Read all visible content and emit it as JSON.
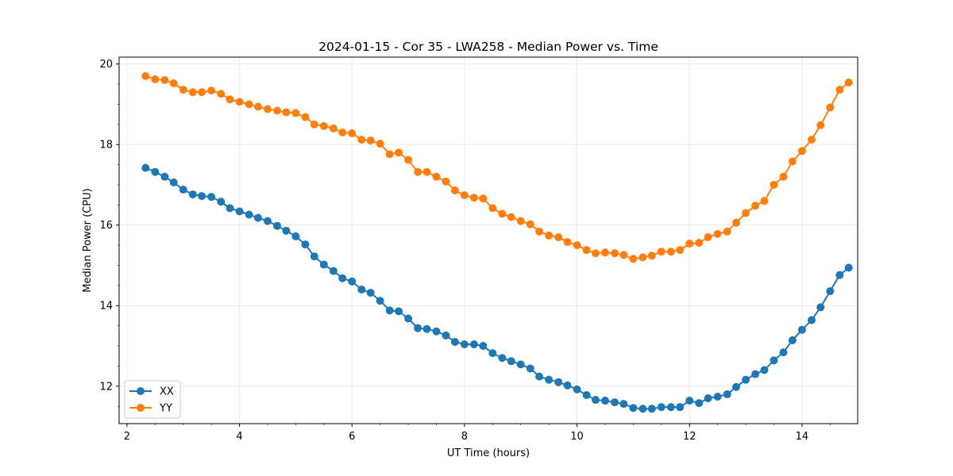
{
  "chart_data": {
    "type": "line",
    "title": "2024-01-15 - Cor 35 - LWA258 - Median Power vs. Time",
    "xlabel": "UT Time (hours)",
    "ylabel": "Median Power (CPU)",
    "xlim": [
      1.86,
      14.99
    ],
    "ylim": [
      11.07,
      20.17
    ],
    "xticks": [
      2,
      4,
      6,
      8,
      10,
      12,
      14
    ],
    "xtick_labels": [
      "2",
      "4",
      "6",
      "8",
      "10",
      "12",
      "14"
    ],
    "yticks": [
      12,
      14,
      16,
      18,
      20
    ],
    "ytick_labels": [
      "12",
      "14",
      "16",
      "18",
      "20"
    ],
    "grid": true,
    "legend_position": "lower-left",
    "series": [
      {
        "name": "XX",
        "color": "#1f77b4",
        "marker": "circle",
        "x": [
          2.33,
          2.5,
          2.67,
          2.83,
          3.0,
          3.17,
          3.33,
          3.5,
          3.67,
          3.83,
          4.0,
          4.17,
          4.33,
          4.5,
          4.67,
          4.83,
          5.0,
          5.17,
          5.33,
          5.5,
          5.67,
          5.83,
          6.0,
          6.17,
          6.33,
          6.5,
          6.67,
          6.83,
          7.0,
          7.17,
          7.33,
          7.5,
          7.67,
          7.83,
          8.0,
          8.17,
          8.33,
          8.5,
          8.67,
          8.83,
          9.0,
          9.17,
          9.33,
          9.5,
          9.67,
          9.83,
          10.0,
          10.17,
          10.33,
          10.5,
          10.67,
          10.83,
          11.0,
          11.17,
          11.33,
          11.5,
          11.67,
          11.83,
          12.0,
          12.17,
          12.33,
          12.5,
          12.67,
          12.83,
          13.0,
          13.17,
          13.33,
          13.5,
          13.67,
          13.83,
          14.0,
          14.17,
          14.33,
          14.5,
          14.67,
          14.83
        ],
        "values": [
          17.42,
          17.32,
          17.2,
          17.06,
          16.88,
          16.76,
          16.72,
          16.7,
          16.58,
          16.42,
          16.34,
          16.26,
          16.18,
          16.1,
          15.98,
          15.86,
          15.72,
          15.52,
          15.22,
          15.02,
          14.86,
          14.68,
          14.6,
          14.4,
          14.32,
          14.12,
          13.88,
          13.86,
          13.68,
          13.44,
          13.42,
          13.36,
          13.26,
          13.1,
          13.04,
          13.04,
          13.0,
          12.82,
          12.7,
          12.62,
          12.54,
          12.44,
          12.24,
          12.16,
          12.1,
          12.02,
          11.92,
          11.78,
          11.66,
          11.64,
          11.6,
          11.56,
          11.46,
          11.44,
          11.44,
          11.48,
          11.48,
          11.48,
          11.64,
          11.58,
          11.7,
          11.74,
          11.8,
          11.98,
          12.16,
          12.3,
          12.4,
          12.64,
          12.84,
          13.14,
          13.4,
          13.64,
          13.96,
          14.36,
          14.76,
          14.94
        ]
      },
      {
        "name": "YY",
        "color": "#ff7f0e",
        "marker": "circle",
        "x": [
          2.33,
          2.5,
          2.67,
          2.83,
          3.0,
          3.17,
          3.33,
          3.5,
          3.67,
          3.83,
          4.0,
          4.17,
          4.33,
          4.5,
          4.67,
          4.83,
          5.0,
          5.17,
          5.33,
          5.5,
          5.67,
          5.83,
          6.0,
          6.17,
          6.33,
          6.5,
          6.67,
          6.83,
          7.0,
          7.17,
          7.33,
          7.5,
          7.67,
          7.83,
          8.0,
          8.17,
          8.33,
          8.5,
          8.67,
          8.83,
          9.0,
          9.17,
          9.33,
          9.5,
          9.67,
          9.83,
          10.0,
          10.17,
          10.33,
          10.5,
          10.67,
          10.83,
          11.0,
          11.17,
          11.33,
          11.5,
          11.67,
          11.83,
          12.0,
          12.17,
          12.33,
          12.5,
          12.67,
          12.83,
          13.0,
          13.17,
          13.33,
          13.5,
          13.67,
          13.83,
          14.0,
          14.17,
          14.33,
          14.5,
          14.67,
          14.83
        ],
        "values": [
          19.7,
          19.62,
          19.6,
          19.52,
          19.36,
          19.3,
          19.3,
          19.34,
          19.26,
          19.12,
          19.06,
          19.0,
          18.94,
          18.88,
          18.84,
          18.8,
          18.78,
          18.68,
          18.5,
          18.46,
          18.4,
          18.3,
          18.28,
          18.12,
          18.1,
          18.02,
          17.76,
          17.8,
          17.62,
          17.32,
          17.32,
          17.2,
          17.08,
          16.86,
          16.74,
          16.68,
          16.66,
          16.42,
          16.28,
          16.2,
          16.1,
          16.02,
          15.84,
          15.74,
          15.7,
          15.58,
          15.5,
          15.38,
          15.3,
          15.32,
          15.3,
          15.26,
          15.16,
          15.2,
          15.24,
          15.34,
          15.34,
          15.38,
          15.54,
          15.56,
          15.7,
          15.78,
          15.84,
          16.06,
          16.3,
          16.48,
          16.6,
          17.0,
          17.2,
          17.58,
          17.84,
          18.12,
          18.48,
          18.92,
          19.36,
          19.54
        ]
      }
    ]
  }
}
